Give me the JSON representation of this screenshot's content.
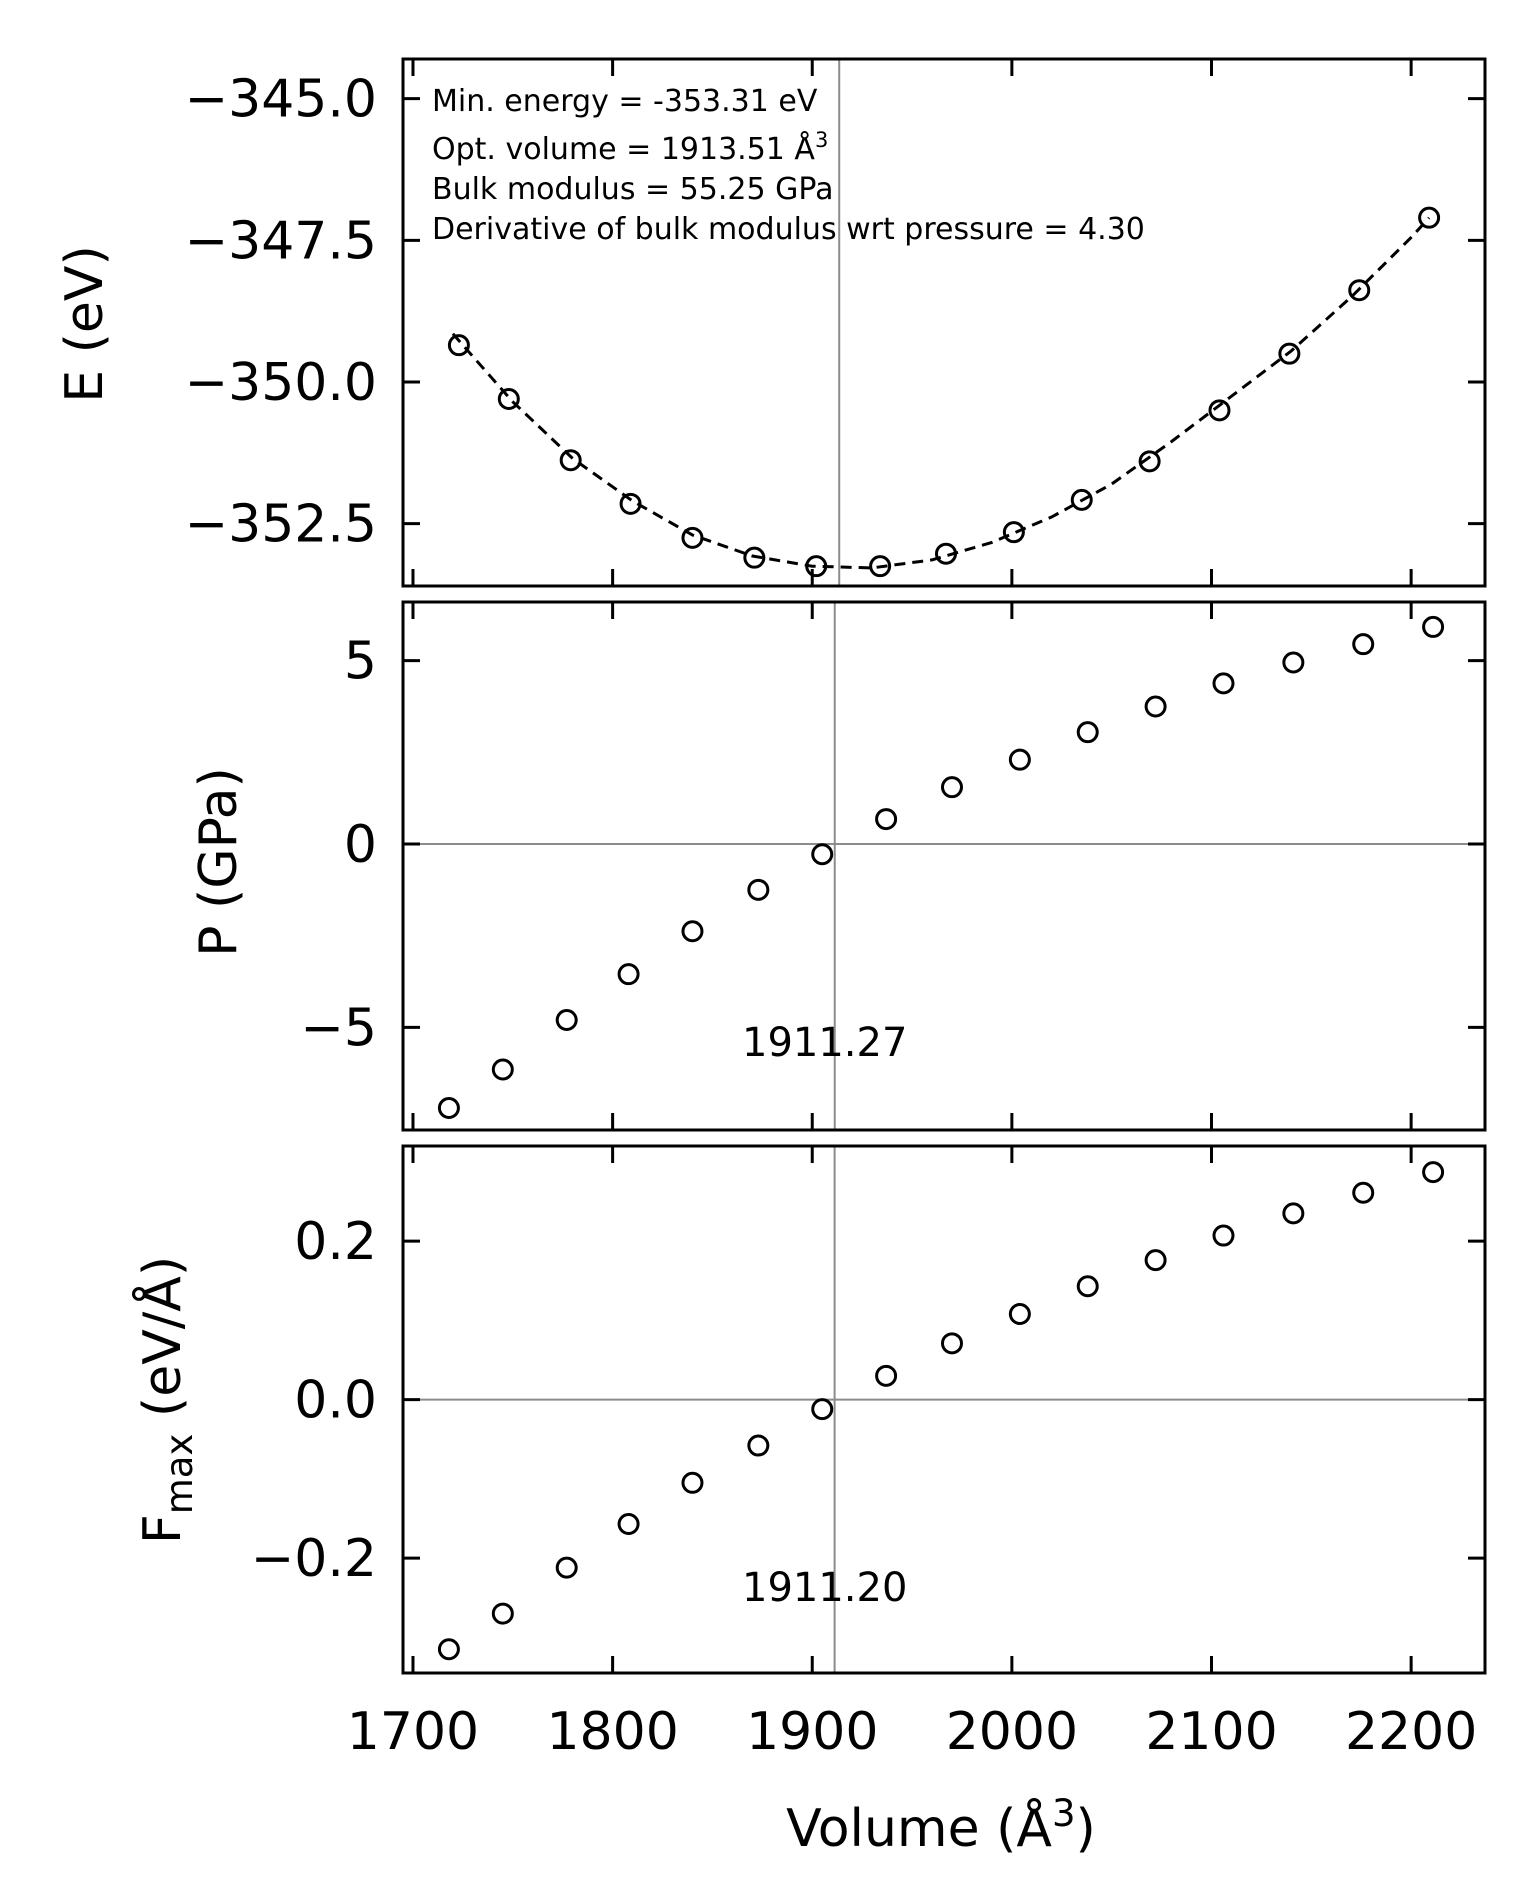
{
  "chart_data": [
    {
      "type": "scatter",
      "panel": "energy",
      "ylabel": "E (eV)",
      "xlim": [
        1695,
        2237
      ],
      "ylim": [
        -353.6,
        -344.3
      ],
      "yticks": [
        -345.0,
        -347.5,
        -350.0,
        -352.5
      ],
      "ytick_labels": [
        "−345.0",
        "−347.5",
        "−350.0",
        "−352.5"
      ],
      "x": [
        1723,
        1748,
        1779,
        1809,
        1840,
        1871,
        1902,
        1934,
        1967,
        2001,
        2035,
        2069,
        2104,
        2139,
        2174,
        2209
      ],
      "y": [
        -349.35,
        -350.3,
        -351.38,
        -352.15,
        -352.75,
        -353.1,
        -353.25,
        -353.25,
        -353.03,
        -352.65,
        -352.08,
        -351.4,
        -350.5,
        -349.5,
        -348.38,
        -347.1
      ],
      "fit": {
        "style": "dashed",
        "x": [
          1720,
          1750,
          1780,
          1810,
          1840,
          1870,
          1900,
          1930,
          1960,
          1990,
          2020,
          2050,
          2080,
          2110,
          2140,
          2170,
          2200,
          2209
        ],
        "y": [
          -349.15,
          -350.35,
          -351.35,
          -352.1,
          -352.7,
          -353.07,
          -353.25,
          -353.28,
          -353.14,
          -352.83,
          -352.38,
          -351.8,
          -351.05,
          -350.25,
          -349.45,
          -348.5,
          -347.45,
          -347.1
        ]
      },
      "vline": 1913.51,
      "annotations": [
        "Min. energy = -353.31 eV",
        "Opt. volume = 1913.51 Å",
        "Bulk modulus = 55.25 GPa",
        "Derivative of bulk modulus wrt pressure = 4.30"
      ]
    },
    {
      "type": "scatter",
      "panel": "pressure",
      "ylabel": "P (GPa)",
      "xlim": [
        1695,
        2237
      ],
      "ylim": [
        -7.8,
        6.6
      ],
      "yticks": [
        5,
        0,
        -5
      ],
      "ytick_labels": [
        "5",
        "0",
        "−5"
      ],
      "x": [
        1718,
        1745,
        1777,
        1808,
        1840,
        1873,
        1905,
        1937,
        1970,
        2004,
        2038,
        2072,
        2106,
        2141,
        2176,
        2211
      ],
      "y": [
        -7.2,
        -6.15,
        -4.8,
        -3.55,
        -2.38,
        -1.25,
        -0.28,
        0.68,
        1.55,
        2.3,
        3.05,
        3.75,
        4.38,
        4.95,
        5.45,
        5.92
      ],
      "vline": 1911.27,
      "vline_label": "1911.27",
      "hline": 0
    },
    {
      "type": "scatter",
      "panel": "force",
      "ylabel": "F",
      "ylabel_sub": "max",
      "ylabel_unit": " (eV/Å)",
      "xlim": [
        1695,
        2237
      ],
      "ylim": [
        -0.345,
        0.32
      ],
      "yticks": [
        0.2,
        0.0,
        -0.2
      ],
      "ytick_labels": [
        "0.2",
        "0.0",
        "−0.2"
      ],
      "x": [
        1718,
        1745,
        1777,
        1808,
        1840,
        1873,
        1905,
        1937,
        1970,
        2004,
        2038,
        2072,
        2106,
        2141,
        2176,
        2211
      ],
      "y": [
        -0.315,
        -0.27,
        -0.212,
        -0.157,
        -0.105,
        -0.058,
        -0.012,
        0.03,
        0.071,
        0.108,
        0.143,
        0.176,
        0.207,
        0.235,
        0.261,
        0.287
      ],
      "vline": 1911.2,
      "vline_label": "1911.20",
      "hline": 0
    }
  ],
  "xaxis": {
    "label": "Volume (Å",
    "label_close": ")",
    "ticks": [
      1700,
      1800,
      1900,
      2000,
      2100,
      2200
    ],
    "tick_labels": [
      "1700",
      "1800",
      "1900",
      "2000",
      "2100",
      "2200"
    ]
  },
  "superscript": "3"
}
